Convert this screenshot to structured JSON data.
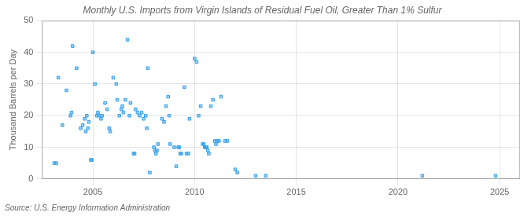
{
  "chart_data": {
    "type": "scatter",
    "title": "Monthly U.S. Imports from Virgin Islands of Residual Fuel Oil, Greater Than 1% Sulfur",
    "ylabel": "Thousand Barrels per Day",
    "annotations": [
      "Source: U.S. Energy Information Administration"
    ],
    "marker": "square",
    "grid": true,
    "xlim": [
      2002.5,
      2026
    ],
    "ylim": [
      0,
      50
    ],
    "xticks": [
      2005,
      2010,
      2015,
      2020,
      2025
    ],
    "yticks": [
      0,
      10,
      20,
      30,
      40,
      50
    ],
    "x": [
      2003.1,
      2003.2,
      2003.3,
      2003.5,
      2003.7,
      2003.9,
      2003.95,
      2004.0,
      2004.2,
      2004.4,
      2004.5,
      2004.6,
      2004.65,
      2004.7,
      2004.75,
      2004.8,
      2004.9,
      2004.95,
      2005.0,
      2005.1,
      2005.2,
      2005.25,
      2005.3,
      2005.4,
      2005.45,
      2005.6,
      2005.7,
      2005.8,
      2005.85,
      2006.0,
      2006.15,
      2006.2,
      2006.3,
      2006.4,
      2006.45,
      2006.5,
      2006.6,
      2006.7,
      2006.8,
      2006.85,
      2007.0,
      2007.05,
      2007.1,
      2007.2,
      2007.3,
      2007.4,
      2007.5,
      2007.6,
      2007.65,
      2007.7,
      2007.8,
      2008.0,
      2008.05,
      2008.1,
      2008.15,
      2008.2,
      2008.4,
      2008.5,
      2008.6,
      2008.7,
      2008.75,
      2008.8,
      2009.0,
      2009.1,
      2009.2,
      2009.25,
      2009.3,
      2009.35,
      2009.5,
      2009.6,
      2009.7,
      2009.75,
      2010.0,
      2010.1,
      2010.2,
      2010.3,
      2010.4,
      2010.45,
      2010.5,
      2010.55,
      2010.6,
      2010.65,
      2010.7,
      2010.8,
      2010.9,
      2011.0,
      2011.05,
      2011.1,
      2011.2,
      2011.3,
      2011.5,
      2011.6,
      2012.0,
      2012.1,
      2013.0,
      2013.5,
      2021.2,
      2024.8
    ],
    "values": [
      5,
      5,
      32,
      17,
      28,
      20,
      21,
      42,
      35,
      16,
      17,
      19,
      15,
      20,
      16,
      18,
      6,
      6,
      40,
      30,
      20,
      21,
      20,
      19,
      20,
      24,
      22,
      16,
      15,
      32,
      30,
      25,
      20,
      22,
      23,
      21,
      25,
      44,
      20,
      24,
      8,
      8,
      22,
      21,
      20,
      21,
      19,
      20,
      16,
      35,
      2,
      10,
      9,
      8,
      9,
      11,
      19,
      18,
      23,
      26,
      20,
      11,
      10,
      4,
      10,
      10,
      8,
      8,
      29,
      8,
      8,
      19,
      38,
      37,
      20,
      23,
      11,
      11,
      10,
      10,
      10,
      9,
      8,
      23,
      25,
      12,
      11,
      12,
      12,
      26,
      12,
      12,
      3,
      2,
      1,
      1,
      1,
      1
    ]
  }
}
